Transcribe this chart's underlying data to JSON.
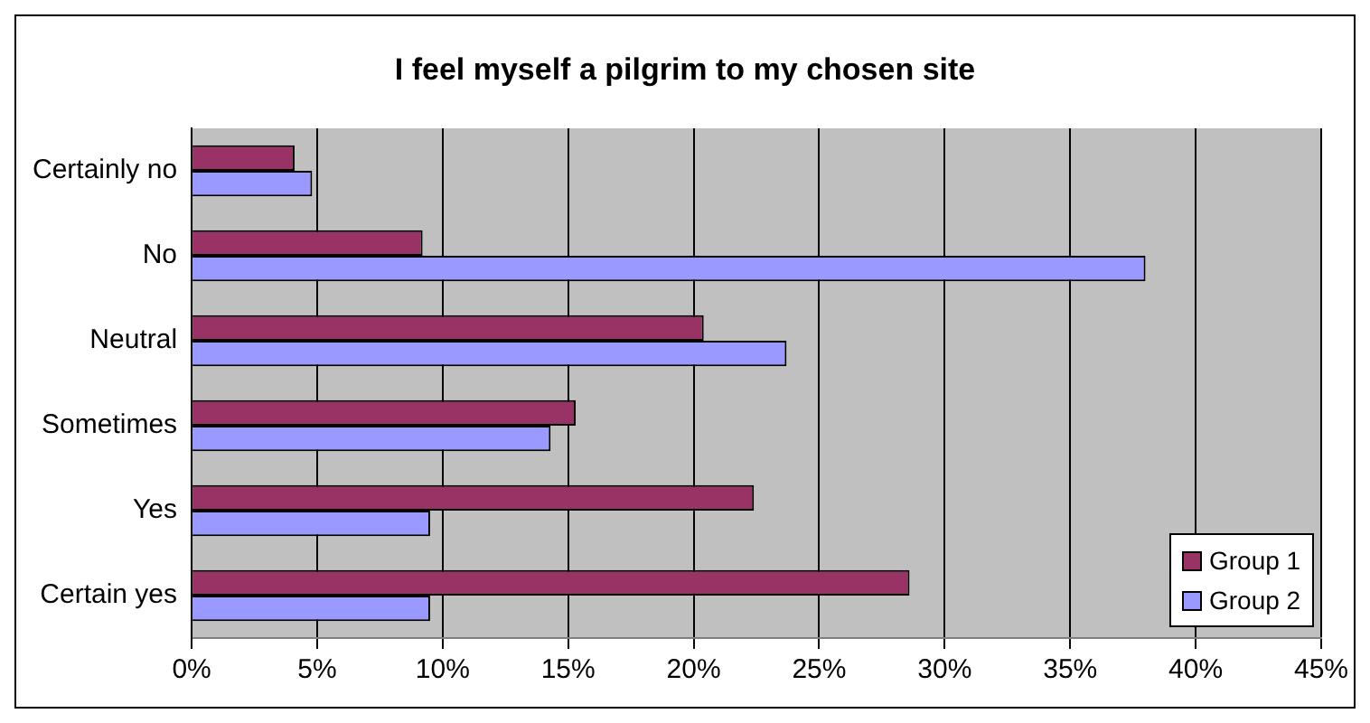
{
  "chart_data": {
    "type": "bar",
    "orientation": "horizontal",
    "title": "I feel myself a pilgrim to my chosen site",
    "categories": [
      "Certainly no",
      "No",
      "Neutral",
      "Sometimes",
      "Yes",
      "Certain yes"
    ],
    "series": [
      {
        "name": "Group 1",
        "color": "#993366",
        "values": [
          4.1,
          9.2,
          20.4,
          15.3,
          22.4,
          28.6
        ]
      },
      {
        "name": "Group 2",
        "color": "#9999ff",
        "values": [
          4.8,
          38.0,
          23.7,
          14.3,
          9.5,
          9.5
        ]
      }
    ],
    "xlim": [
      0,
      45
    ],
    "xticks": [
      {
        "value": 0,
        "label": "0%"
      },
      {
        "value": 5,
        "label": "5%"
      },
      {
        "value": 10,
        "label": "10%"
      },
      {
        "value": 15,
        "label": "15%"
      },
      {
        "value": 20,
        "label": "20%"
      },
      {
        "value": 25,
        "label": "25%"
      },
      {
        "value": 30,
        "label": "30%"
      },
      {
        "value": 35,
        "label": "35%"
      },
      {
        "value": 40,
        "label": "40%"
      },
      {
        "value": 45,
        "label": "45%"
      }
    ],
    "grid": "x",
    "legend": "bottom right"
  }
}
